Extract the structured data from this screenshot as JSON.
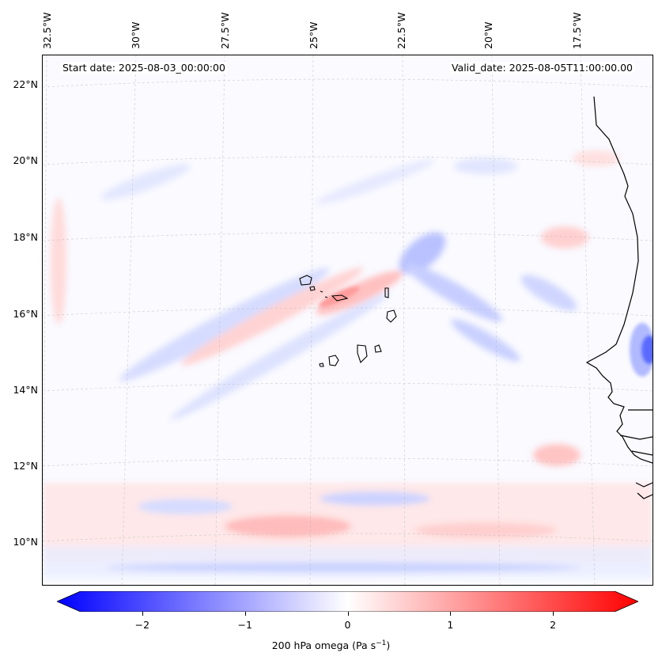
{
  "header": {
    "start_date": "Start date: 2025-08-03_00:00:00",
    "valid_date": "Valid_date: 2025-08-05T11:00:00.00"
  },
  "longitude_labels": [
    "32.5°W",
    "30°W",
    "27.5°W",
    "25°W",
    "22.5°W",
    "20°W",
    "17.5°W"
  ],
  "latitude_labels": [
    "22°N",
    "20°N",
    "18°N",
    "16°N",
    "14°N",
    "12°N",
    "10°N"
  ],
  "colorbar": {
    "ticks": [
      "−2",
      "−1",
      "0",
      "1",
      "2"
    ],
    "tick_values": [
      -2,
      -1,
      0,
      1,
      2
    ],
    "range": [
      -2.6,
      2.6
    ],
    "label_prefix": "200 hPa omega (Pa s",
    "label_exponent": "−1",
    "label_suffix": ")",
    "colors": {
      "negative": "#0000ff",
      "zero": "#ffffff",
      "positive": "#ff0000"
    }
  },
  "map": {
    "projection": "lambert-conformal",
    "lon_range": [
      -33,
      -15.5
    ],
    "lat_range": [
      9,
      22.8
    ],
    "gridlines": true,
    "coastline_color": "#000000"
  }
}
